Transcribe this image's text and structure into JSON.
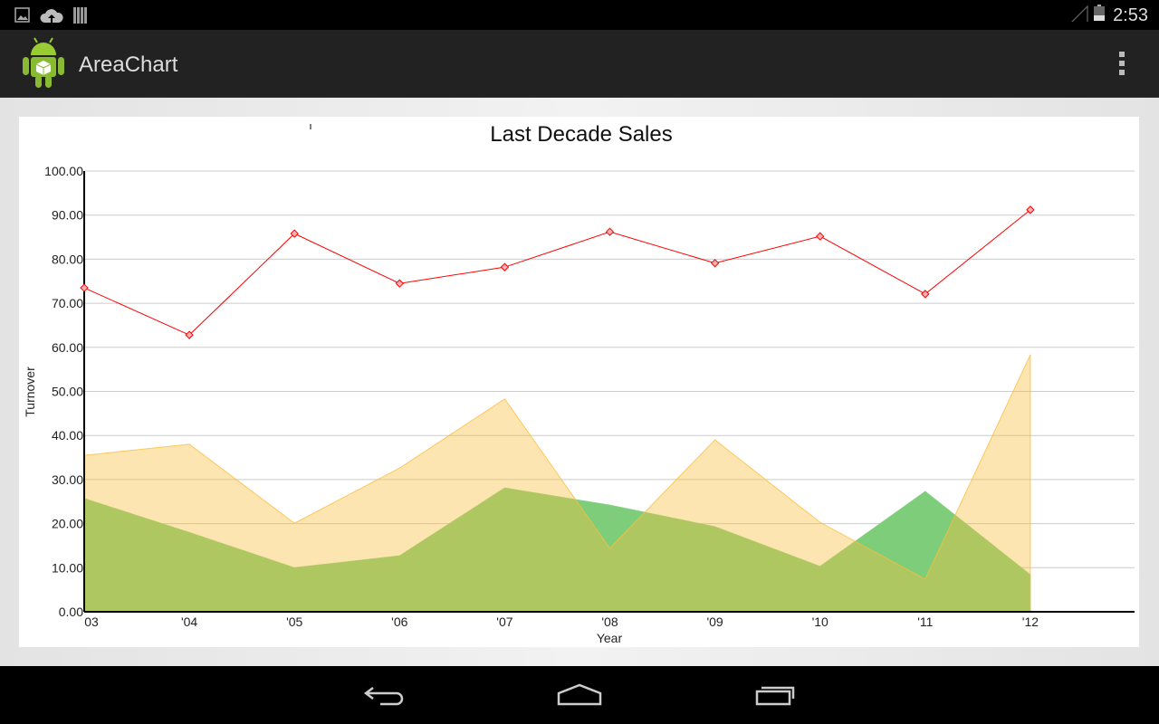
{
  "status_bar": {
    "time": "2:53",
    "icons": [
      "image-icon",
      "cloud-upload-icon",
      "barcode-icon",
      "signal-icon",
      "battery-icon"
    ]
  },
  "action_bar": {
    "title": "AreaChart",
    "app_icon": "android-icon",
    "overflow_icon": "overflow-menu-icon"
  },
  "nav_bar": {
    "icons": [
      "back-icon",
      "home-icon",
      "recent-apps-icon"
    ]
  },
  "chart_data": {
    "type": "area",
    "title": "Last Decade Sales",
    "xlabel": "Year",
    "ylabel": "Turnover",
    "ylim": [
      0,
      100
    ],
    "yticks": [
      "0.00",
      "10.00",
      "20.00",
      "30.00",
      "40.00",
      "50.00",
      "60.00",
      "70.00",
      "80.00",
      "90.00",
      "100.00"
    ],
    "categories": [
      "03",
      "'04",
      "'05",
      "'06",
      "'07",
      "'08",
      "'09",
      "'10",
      "'11",
      "'12"
    ],
    "grid": true,
    "series": [
      {
        "type": "area",
        "color": "#7ecd7b",
        "values": [
          25.7,
          18.0,
          10.0,
          12.7,
          28.1,
          24.2,
          19.3,
          10.3,
          27.3,
          8.4
        ]
      },
      {
        "type": "area",
        "color": "#fbbe3c",
        "values": [
          35.5,
          38.0,
          20.1,
          32.6,
          48.3,
          14.4,
          39.0,
          20.3,
          7.4,
          58.3
        ]
      },
      {
        "type": "line",
        "color": "#ff0000",
        "marker": "diamond",
        "values": [
          73.5,
          62.8,
          85.8,
          74.5,
          78.2,
          86.2,
          79.1,
          85.2,
          72.1,
          91.2
        ]
      }
    ]
  }
}
